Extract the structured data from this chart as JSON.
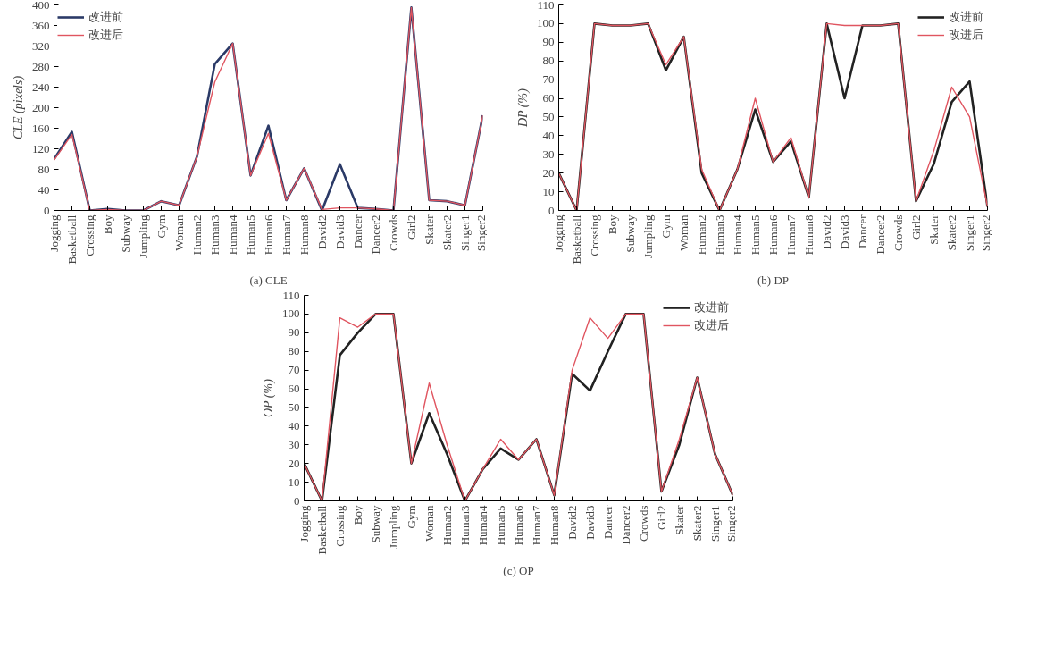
{
  "chart_data": [
    {
      "type": "line",
      "ylabel": "CLE (pixels)",
      "annotations": [
        "(a) CLE"
      ],
      "categories": [
        "Jogging",
        "Basketball",
        "Crossing",
        "Boy",
        "Subway",
        "Jumpling",
        "Gym",
        "Woman",
        "Human2",
        "Human3",
        "Human4",
        "Human5",
        "Human6",
        "Human7",
        "Human8",
        "David2",
        "David3",
        "Dancer",
        "Dancer2",
        "Crowds",
        "Girl2",
        "Skater",
        "Skater2",
        "Singer1",
        "Singer2"
      ],
      "series": [
        {
          "name": "改进前",
          "color": "#2b3a67",
          "values": [
            100,
            153,
            0,
            3,
            0,
            0,
            18,
            10,
            105,
            285,
            325,
            68,
            165,
            20,
            82,
            0,
            90,
            5,
            3,
            0,
            395,
            20,
            18,
            10,
            185
          ]
        },
        {
          "name": "改进后",
          "color": "#e05560",
          "values": [
            98,
            148,
            0,
            2,
            0,
            0,
            18,
            10,
            105,
            250,
            325,
            68,
            150,
            20,
            82,
            2,
            5,
            5,
            3,
            0,
            395,
            20,
            18,
            10,
            185
          ]
        }
      ],
      "ylim": [
        0,
        400
      ],
      "yticks": [
        0,
        40,
        80,
        120,
        160,
        200,
        240,
        280,
        320,
        360,
        400
      ],
      "grid": false,
      "legend": "top left",
      "line_style": "solid",
      "marker": "none"
    },
    {
      "type": "line",
      "ylabel": "DP (%)",
      "annotations": [
        "(b) DP"
      ],
      "categories": [
        "Jogging",
        "Basketball",
        "Crossing",
        "Boy",
        "Subway",
        "Jumpling",
        "Gym",
        "Woman",
        "Human2",
        "Human3",
        "Human4",
        "Human5",
        "Human6",
        "Human7",
        "Human8",
        "David2",
        "David3",
        "Dancer",
        "Dancer2",
        "Crowds",
        "Girl2",
        "Skater",
        "Skater2",
        "Singer1",
        "Singer2"
      ],
      "series": [
        {
          "name": "改进前",
          "color": "#222222",
          "values": [
            20,
            0,
            100,
            99,
            99,
            100,
            75,
            93,
            20,
            0,
            22,
            54,
            26,
            37,
            7,
            100,
            60,
            99,
            99,
            100,
            5,
            25,
            58,
            69,
            2
          ]
        },
        {
          "name": "改进后",
          "color": "#e05560",
          "values": [
            20,
            0,
            100,
            99,
            99,
            100,
            78,
            93,
            22,
            0,
            22,
            60,
            26,
            39,
            7,
            100,
            99,
            99,
            99,
            100,
            5,
            32,
            66,
            50,
            2
          ]
        }
      ],
      "ylim": [
        0,
        110
      ],
      "yticks": [
        0,
        10,
        20,
        30,
        40,
        50,
        60,
        70,
        80,
        90,
        100,
        110
      ],
      "grid": false,
      "legend": "top right",
      "line_style": "solid",
      "marker": "none"
    },
    {
      "type": "line",
      "ylabel": "OP (%)",
      "annotations": [
        "(c) OP"
      ],
      "categories": [
        "Jogging",
        "Basketball",
        "Crossing",
        "Boy",
        "Subway",
        "Jumpling",
        "Gym",
        "Woman",
        "Human2",
        "Human3",
        "Human4",
        "Human5",
        "Human6",
        "Human7",
        "Human8",
        "David2",
        "David3",
        "Dancer",
        "Dancer2",
        "Crowds",
        "Girl2",
        "Skater",
        "Skater2",
        "Singer1",
        "Singer2"
      ],
      "series": [
        {
          "name": "改进前",
          "color": "#222222",
          "values": [
            20,
            0,
            78,
            90,
            100,
            100,
            20,
            47,
            25,
            0,
            17,
            28,
            22,
            33,
            3,
            68,
            59,
            80,
            100,
            100,
            5,
            30,
            66,
            25,
            3
          ]
        },
        {
          "name": "改进后",
          "color": "#e05560",
          "values": [
            20,
            0,
            98,
            93,
            100,
            100,
            20,
            63,
            30,
            0,
            17,
            33,
            22,
            33,
            3,
            70,
            98,
            87,
            100,
            100,
            5,
            33,
            66,
            25,
            3
          ]
        }
      ],
      "ylim": [
        0,
        110
      ],
      "yticks": [
        0,
        10,
        20,
        30,
        40,
        50,
        60,
        70,
        80,
        90,
        100,
        110
      ],
      "grid": false,
      "legend": "top right",
      "line_style": "solid",
      "marker": "none"
    }
  ]
}
